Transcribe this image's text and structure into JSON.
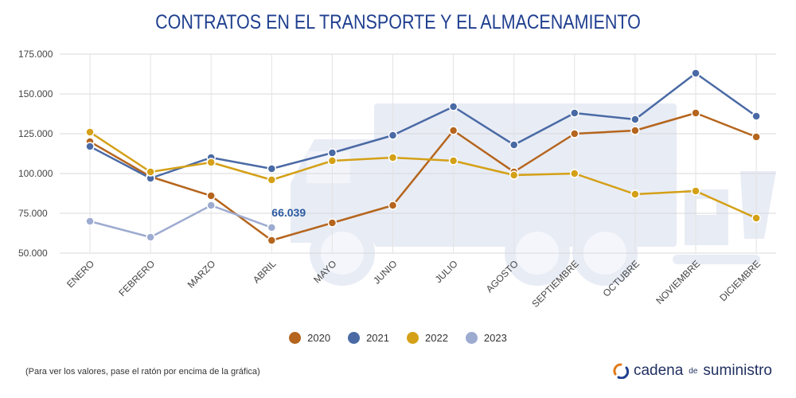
{
  "header": {
    "title": "CONTRATOS EN EL TRANSPORTE Y EL ALMACENAMIENTO"
  },
  "footnote": "(Para ver los valores, pase el ratón por encima de la gráfica)",
  "brand": {
    "part1": "cadena",
    "part2": "de",
    "part3": "suministro",
    "icon": "cadena-de-suministro-logo-icon"
  },
  "chart_data": {
    "type": "line",
    "title": "CONTRATOS EN EL TRANSPORTE Y EL ALMACENAMIENTO",
    "categories": [
      "ENERO",
      "FEBRERO",
      "MARZO",
      "ABRIL",
      "MAYO",
      "JUNIO",
      "JULIO",
      "AGOSTO",
      "SEPTIEMBRE",
      "OCTUBRE",
      "NOVIEMBRE",
      "DICIEMBRE"
    ],
    "y_ticks": [
      "50.000",
      "75.000",
      "100.000",
      "125.000",
      "150.000",
      "175.000"
    ],
    "ylim": [
      50000,
      175000
    ],
    "grid": true,
    "legend_position": "bottom",
    "series": [
      {
        "name": "2020",
        "color": "#b5651d",
        "values": [
          120000,
          98000,
          86000,
          58000,
          69000,
          80000,
          127000,
          101000,
          125000,
          127000,
          138000,
          123000
        ]
      },
      {
        "name": "2021",
        "color": "#4a6aa5",
        "values": [
          117000,
          97000,
          110000,
          103000,
          113000,
          124000,
          142000,
          118000,
          138000,
          134000,
          163000,
          136000
        ]
      },
      {
        "name": "2022",
        "color": "#d4a017",
        "values": [
          126000,
          101000,
          107000,
          96000,
          108000,
          110000,
          108000,
          99000,
          100000,
          87000,
          89000,
          72000
        ]
      },
      {
        "name": "2023",
        "color": "#9dabd0",
        "values": [
          70000,
          60000,
          80000,
          66039,
          null,
          null,
          null,
          null,
          null,
          null,
          null,
          null
        ]
      }
    ],
    "annotations": [
      {
        "series": "2023",
        "category": "ABRIL",
        "text": "66.039",
        "color": "#2b5aa0"
      }
    ]
  }
}
